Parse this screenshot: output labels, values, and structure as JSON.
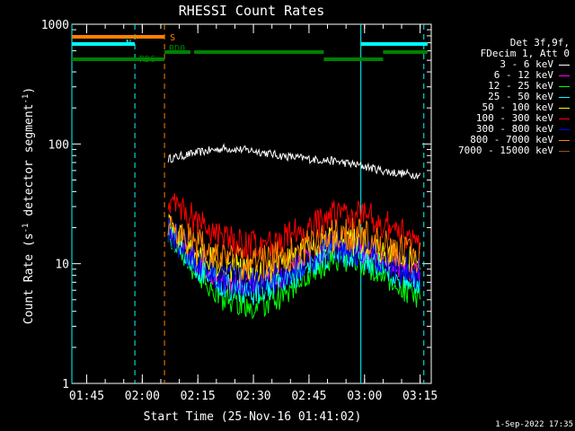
{
  "chart_data": {
    "type": "line",
    "title": "RHESSI Count Rates",
    "xlabel": "Start Time (25-Nov-16 01:41:02)",
    "ylabel": "Count Rate (s-1 detector segment-1)",
    "ylabel_parts": [
      "Count Rate (s",
      "-1",
      " detector segment",
      "-1",
      ")"
    ],
    "y_scale": "log",
    "ylim": [
      1,
      1000
    ],
    "y_ticks": [
      "1",
      "10",
      "100",
      "1000"
    ],
    "xlim": [
      "01:41",
      "03:18"
    ],
    "x_ticks": [
      "01:45",
      "02:00",
      "02:15",
      "02:30",
      "02:45",
      "03:00",
      "03:15"
    ],
    "legend_header": [
      "Det 3f,9f,",
      "FDecim 1, Att 0"
    ],
    "series": [
      {
        "name": "3 - 6 keV",
        "color": "#ffffff",
        "x": [
          "02:07",
          "02:15",
          "02:22",
          "02:30",
          "02:37",
          "02:45",
          "02:52",
          "03:00",
          "03:07",
          "03:15"
        ],
        "values": [
          75,
          85,
          92,
          88,
          80,
          75,
          72,
          65,
          58,
          55
        ]
      },
      {
        "name": "6 - 12 keV",
        "color": "#ff00ff",
        "x": [
          "02:07",
          "02:15",
          "02:22",
          "02:30",
          "02:37",
          "02:45",
          "02:52",
          "03:00",
          "03:07",
          "03:15"
        ],
        "values": [
          20,
          10,
          7,
          6.5,
          7.5,
          11,
          14,
          12,
          10,
          8
        ]
      },
      {
        "name": "12 - 25 keV",
        "color": "#00ff00",
        "x": [
          "02:07",
          "02:15",
          "02:22",
          "02:30",
          "02:37",
          "02:45",
          "02:52",
          "03:00",
          "03:07",
          "03:15"
        ],
        "values": [
          18,
          8,
          5,
          4.2,
          5,
          8,
          11,
          10,
          7,
          5
        ]
      },
      {
        "name": "25 - 50 keV",
        "color": "#00ffff",
        "x": [
          "02:07",
          "02:15",
          "02:22",
          "02:30",
          "02:37",
          "02:45",
          "02:52",
          "03:00",
          "03:07",
          "03:15"
        ],
        "values": [
          20,
          9,
          6.5,
          5.5,
          6.5,
          9.5,
          12.5,
          11,
          8.5,
          6.5
        ]
      },
      {
        "name": "50 - 100 keV",
        "color": "#ffff00",
        "x": [
          "02:07",
          "02:15",
          "02:22",
          "02:30",
          "02:37",
          "02:45",
          "02:52",
          "03:00",
          "03:07",
          "03:15"
        ],
        "values": [
          21,
          12,
          9.5,
          8.5,
          9.5,
          13,
          16,
          15,
          12,
          10
        ]
      },
      {
        "name": "100 - 300 keV",
        "color": "#ff0000",
        "x": [
          "02:07",
          "02:15",
          "02:22",
          "02:30",
          "02:37",
          "02:45",
          "02:52",
          "03:00",
          "03:07",
          "03:15"
        ],
        "values": [
          35,
          22,
          16,
          14,
          15.5,
          20,
          26,
          26,
          20,
          15
        ]
      },
      {
        "name": "300 - 800 keV",
        "color": "#0000ff",
        "x": [
          "02:07",
          "02:15",
          "02:22",
          "02:30",
          "02:37",
          "02:45",
          "02:52",
          "03:00",
          "03:07",
          "03:15"
        ],
        "values": [
          19,
          10,
          7.5,
          7,
          8,
          11,
          14,
          12.5,
          10,
          8
        ]
      },
      {
        "name": "800 - 7000 keV",
        "color": "#ff8000",
        "x": [
          "02:07",
          "02:15",
          "02:22",
          "02:30",
          "02:37",
          "02:45",
          "02:52",
          "03:00",
          "03:07",
          "03:15"
        ],
        "values": [
          22,
          14,
          11,
          10,
          11,
          14,
          17.5,
          17,
          13.5,
          11
        ]
      },
      {
        "name": "7000 - 15000 keV",
        "color": "#a05000",
        "x": [],
        "values": []
      }
    ],
    "flag_bars": [
      {
        "label": "S",
        "color": "#ff8000",
        "segments": [
          [
            "01:41",
            "02:06"
          ]
        ]
      },
      {
        "label": "N",
        "color": "#00ffff",
        "segments": [
          [
            "01:41",
            "01:58"
          ],
          [
            "02:59",
            "03:17"
          ]
        ]
      },
      {
        "label": "RD0",
        "color": "#008000",
        "segments": [
          [
            "02:06",
            "02:13"
          ],
          [
            "02:14",
            "02:49"
          ],
          [
            "03:05",
            "03:17"
          ]
        ]
      },
      {
        "label": "RD6",
        "color": "#008000",
        "segments": [
          [
            "01:41",
            "02:06"
          ],
          [
            "02:49",
            "03:05"
          ]
        ]
      }
    ],
    "vertical_markers": [
      {
        "time": "01:41",
        "color": "#00ffff",
        "style": "solid"
      },
      {
        "time": "01:58",
        "color": "#00ffff",
        "style": "dashed"
      },
      {
        "time": "02:06",
        "color": "#ff8000",
        "style": "dashed"
      },
      {
        "time": "02:59",
        "color": "#00ffff",
        "style": "solid"
      },
      {
        "time": "03:16",
        "color": "#00ffff",
        "style": "dashed"
      }
    ],
    "grid": false
  },
  "footer_date": "1-Sep-2022 17:35"
}
